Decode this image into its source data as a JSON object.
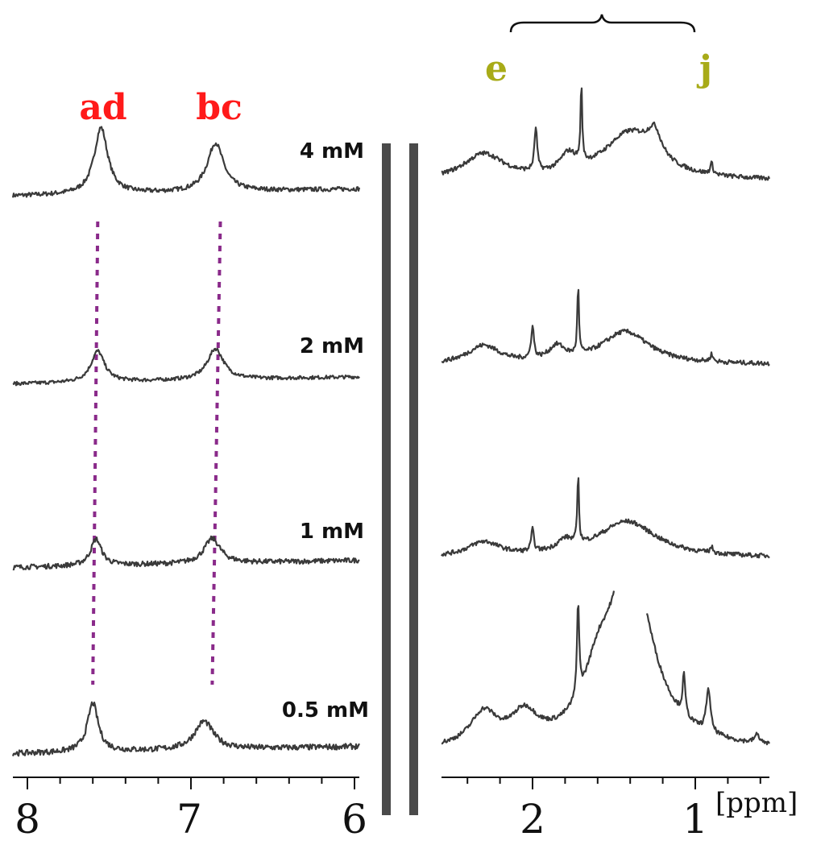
{
  "chart_data": {
    "type": "line",
    "title": "",
    "xlabel": "[ppm]",
    "colors": {
      "aromatic_labels": "#ff1a1a",
      "aliphatic_labels": "#a8ab18",
      "guides": "#8a2a8a",
      "traces": "#3a3a3a",
      "dividers": "#4a4a4a"
    },
    "peak_labels": {
      "aromatic": [
        "ad",
        "bc"
      ],
      "aliphatic": [
        "e",
        "j"
      ]
    },
    "concentrations": [
      "4 mM",
      "2 mM",
      "1 mM",
      "0.5 mM"
    ],
    "panels": [
      {
        "name": "aromatic",
        "xlim": [
          8.1,
          6.0
        ],
        "ticks": [
          8,
          7,
          6
        ],
        "tick_labels": [
          "8",
          "7",
          "6"
        ],
        "minor_step": 0.2,
        "series": [
          {
            "name": "4 mM",
            "baseline": 0.06,
            "noise": 0.025,
            "peaks": [
              {
                "ppm": 7.55,
                "height": 0.75,
                "width": 0.05
              },
              {
                "ppm": 6.85,
                "height": 0.55,
                "width": 0.06
              }
            ]
          },
          {
            "name": "2 mM",
            "baseline": 0.03,
            "noise": 0.02,
            "peaks": [
              {
                "ppm": 7.57,
                "height": 0.35,
                "width": 0.05
              },
              {
                "ppm": 6.85,
                "height": 0.35,
                "width": 0.06
              }
            ]
          },
          {
            "name": "1 mM",
            "baseline": 0.05,
            "noise": 0.028,
            "peaks": [
              {
                "ppm": 7.58,
                "height": 0.3,
                "width": 0.04
              },
              {
                "ppm": 6.87,
                "height": 0.28,
                "width": 0.06
              }
            ]
          },
          {
            "name": "0.5 mM",
            "baseline": 0.04,
            "noise": 0.032,
            "peaks": [
              {
                "ppm": 7.6,
                "height": 0.55,
                "width": 0.04
              },
              {
                "ppm": 6.92,
                "height": 0.32,
                "width": 0.07
              }
            ]
          }
        ],
        "guides": [
          [
            7.57,
            7.6
          ],
          [
            6.82,
            6.87
          ]
        ]
      },
      {
        "name": "aliphatic",
        "xlim": [
          2.5,
          0.5
        ],
        "ticks": [
          2,
          1
        ],
        "tick_labels": [
          "2",
          "1"
        ],
        "minor_step": 0.2,
        "series": [
          {
            "name": "4 mM",
            "baseline": 0.08,
            "noise": 0.03,
            "peaks": [
              {
                "ppm": 2.3,
                "height": 0.35,
                "width": 0.15
              },
              {
                "ppm": 1.98,
                "height": 0.6,
                "width": 0.01
              },
              {
                "ppm": 1.7,
                "height": 1.05,
                "width": 0.006
              },
              {
                "ppm": 1.78,
                "height": 0.25,
                "width": 0.06
              },
              {
                "ppm": 1.4,
                "height": 0.65,
                "width": 0.2
              },
              {
                "ppm": 1.25,
                "height": 0.35,
                "width": 0.05
              },
              {
                "ppm": 0.9,
                "height": 0.15,
                "width": 0.01
              }
            ]
          },
          {
            "name": "2 mM",
            "baseline": 0.08,
            "noise": 0.03,
            "peaks": [
              {
                "ppm": 2.3,
                "height": 0.25,
                "width": 0.12
              },
              {
                "ppm": 2.0,
                "height": 0.45,
                "width": 0.01
              },
              {
                "ppm": 1.72,
                "height": 0.95,
                "width": 0.006
              },
              {
                "ppm": 1.85,
                "height": 0.2,
                "width": 0.06
              },
              {
                "ppm": 1.43,
                "height": 0.45,
                "width": 0.18
              },
              {
                "ppm": 0.9,
                "height": 0.1,
                "width": 0.01
              }
            ]
          },
          {
            "name": "1 mM",
            "baseline": 0.08,
            "noise": 0.03,
            "peaks": [
              {
                "ppm": 2.3,
                "height": 0.2,
                "width": 0.12
              },
              {
                "ppm": 2.0,
                "height": 0.3,
                "width": 0.01
              },
              {
                "ppm": 1.72,
                "height": 0.95,
                "width": 0.006
              },
              {
                "ppm": 1.8,
                "height": 0.15,
                "width": 0.06
              },
              {
                "ppm": 1.42,
                "height": 0.5,
                "width": 0.22
              },
              {
                "ppm": 0.9,
                "height": 0.08,
                "width": 0.01
              }
            ]
          },
          {
            "name": "0.5 mM",
            "baseline": 0.08,
            "noise": 0.03,
            "peaks": [
              {
                "ppm": 2.3,
                "height": 0.45,
                "width": 0.1
              },
              {
                "ppm": 2.05,
                "height": 0.4,
                "width": 0.1
              },
              {
                "ppm": 1.72,
                "height": 1.3,
                "width": 0.008
              },
              {
                "ppm": 1.6,
                "height": 0.6,
                "width": 0.1
              },
              {
                "ppm": 1.4,
                "height": 2.6,
                "width": 0.16
              },
              {
                "ppm": 1.07,
                "height": 0.55,
                "width": 0.01
              },
              {
                "ppm": 0.92,
                "height": 0.6,
                "width": 0.015
              },
              {
                "ppm": 0.62,
                "height": 0.12,
                "width": 0.02
              }
            ],
            "clip_top": 1.15
          }
        ]
      }
    ]
  }
}
